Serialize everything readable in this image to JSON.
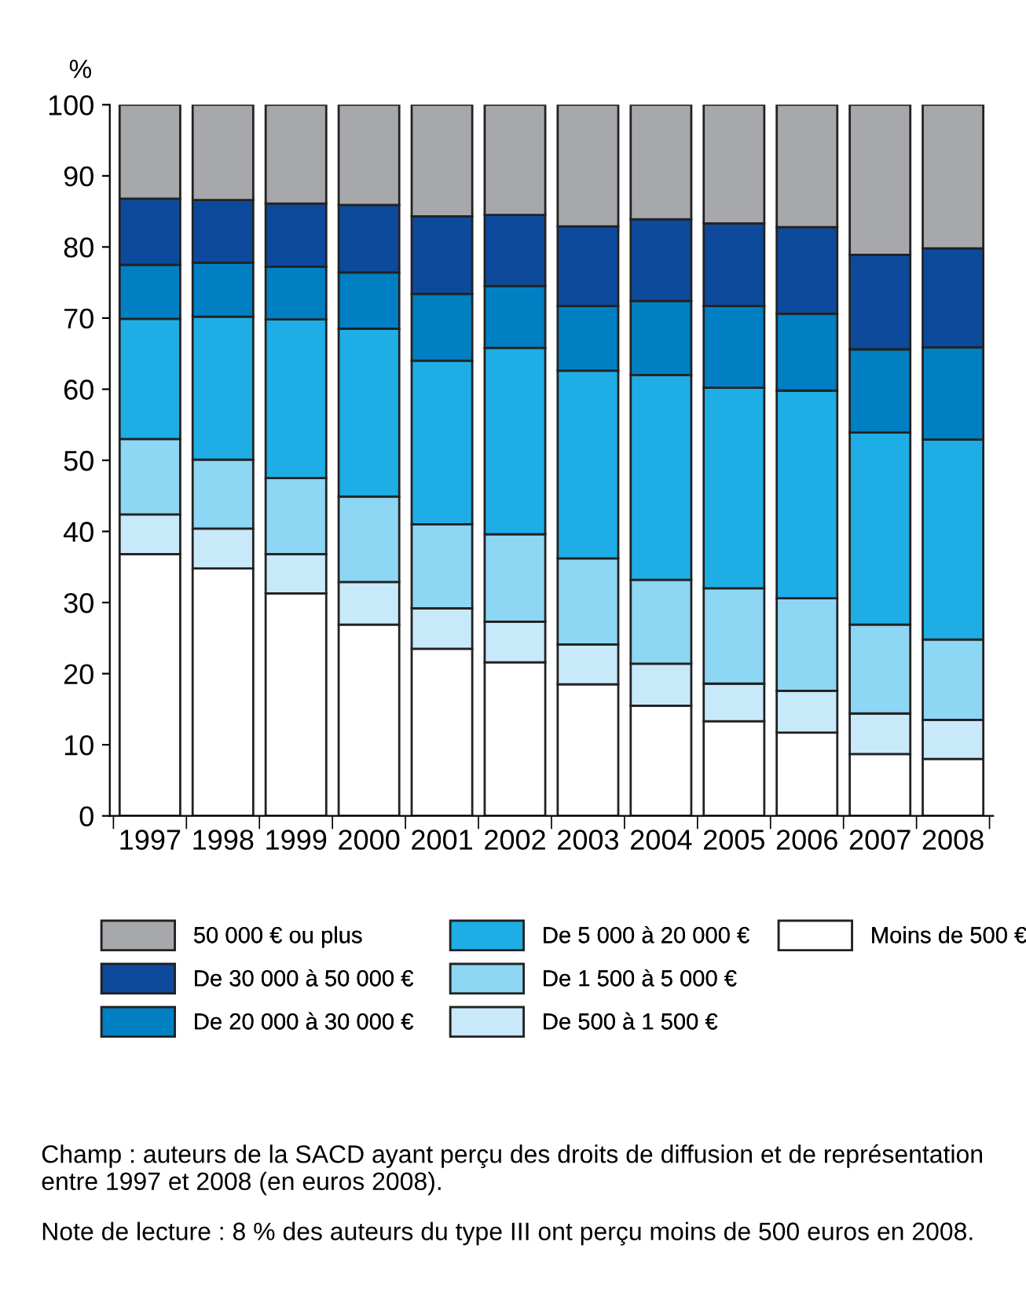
{
  "chart_data": {
    "type": "bar",
    "stacked": true,
    "ylabel": "%",
    "categories": [
      "1997",
      "1998",
      "1999",
      "2000",
      "2001",
      "2002",
      "2003",
      "2004",
      "2005",
      "2006",
      "2007",
      "2008"
    ],
    "series": [
      {
        "name": "Moins de 500 €",
        "color": "#ffffff",
        "values": [
          36.8,
          34.8,
          31.3,
          26.9,
          23.5,
          21.6,
          18.5,
          15.5,
          13.3,
          11.7,
          8.7,
          8.0
        ]
      },
      {
        "name": "De 500 à 1 500 €",
        "color": "#c8e9f9",
        "values": [
          5.6,
          5.6,
          5.5,
          6.0,
          5.7,
          5.7,
          5.6,
          5.9,
          5.3,
          5.9,
          5.7,
          5.5
        ]
      },
      {
        "name": "De 1 500 à 5 000 €",
        "color": "#8dd6f4",
        "values": [
          10.6,
          9.7,
          10.7,
          12.0,
          11.8,
          12.3,
          12.1,
          11.8,
          13.4,
          13.0,
          12.5,
          11.3
        ]
      },
      {
        "name": "De 5 000 à 20 000 €",
        "color": "#1eaee5",
        "values": [
          16.9,
          20.1,
          22.3,
          23.6,
          23.0,
          26.2,
          26.4,
          28.8,
          28.2,
          29.2,
          27.0,
          28.1
        ]
      },
      {
        "name": "De 20 000 à 30 000 €",
        "color": "#0080c3",
        "values": [
          7.6,
          7.6,
          7.4,
          7.9,
          9.4,
          8.7,
          9.1,
          10.4,
          11.5,
          10.8,
          11.7,
          13.0
        ]
      },
      {
        "name": "De 30 000 à 50 000 €",
        "color": "#0d4a9c",
        "values": [
          9.3,
          8.8,
          8.9,
          9.5,
          10.9,
          10.0,
          11.2,
          11.5,
          11.6,
          12.2,
          13.3,
          13.9
        ]
      },
      {
        "name": "50 000 € ou plus",
        "color": "#a7a8ac",
        "values": [
          13.2,
          13.4,
          13.9,
          14.1,
          15.7,
          15.5,
          17.1,
          16.1,
          16.7,
          17.2,
          21.1,
          20.2
        ]
      }
    ],
    "ylim": [
      0,
      100
    ],
    "yticks": [
      0,
      10,
      20,
      30,
      40,
      50,
      60,
      70,
      80,
      90,
      100
    ],
    "grid": false,
    "legend": "bottom",
    "annotations": [
      "Champ : auteurs de la SACD ayant perçu des droits de diffusion et de représentation entre 1997 et 2008 (en euros 2008).",
      "Note de lecture : 8 % des auteurs du type III ont perçu moins de 500 euros en 2008."
    ]
  }
}
